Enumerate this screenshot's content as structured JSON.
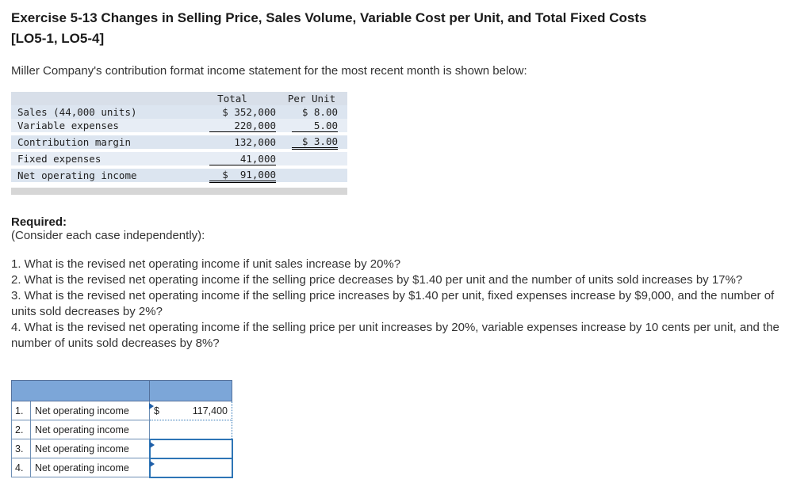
{
  "title": {
    "line1": "Exercise 5-13 Changes in Selling Price, Sales Volume, Variable Cost per Unit, and Total Fixed Costs",
    "line2": "[LO5-1, LO5-4]"
  },
  "intro": "Miller Company's contribution format income statement for the most recent month is shown below:",
  "income_statement": {
    "headers": {
      "total": "Total",
      "per_unit": "Per Unit"
    },
    "rows": [
      {
        "label": "Sales (44,000 units)",
        "total": "$ 352,000",
        "per_unit": "$ 8.00"
      },
      {
        "label": "Variable expenses",
        "total": "220,000",
        "per_unit": "5.00"
      },
      {
        "label": "Contribution margin",
        "total": "132,000",
        "per_unit": "$ 3.00"
      },
      {
        "label": "Fixed expenses",
        "total": "41,000",
        "per_unit": ""
      },
      {
        "label": "Net operating income",
        "total": "$  91,000",
        "per_unit": ""
      }
    ]
  },
  "required": {
    "heading": "Required:",
    "note": "(Consider each case independently):",
    "questions": [
      "1. What is the revised net operating income if unit sales increase by 20%?",
      "2. What is the revised net operating income if the selling price decreases by $1.40 per unit and the number of units sold increases by 17%?",
      "3. What is the revised net operating income if the selling price increases by $1.40 per unit, fixed expenses increase by $9,000, and the number of units sold decreases by 2%?",
      "4. What is the revised net operating income if the selling price per unit increases by 20%, variable expenses increase by 10 cents per unit, and the number of units sold decreases by 8%?"
    ]
  },
  "answers": {
    "rows": [
      {
        "num": "1.",
        "label": "Net operating income",
        "currency": "$",
        "value": "117,400"
      },
      {
        "num": "2.",
        "label": "Net operating income",
        "currency": "",
        "value": ""
      },
      {
        "num": "3.",
        "label": "Net operating income",
        "currency": "",
        "value": ""
      },
      {
        "num": "4.",
        "label": "Net operating income",
        "currency": "",
        "value": ""
      }
    ]
  },
  "colors": {
    "statement_stripe": "#dce5f0",
    "answer_header_blue": "#7ca6d8",
    "selection_blue": "#2e75b6",
    "grid_blue": "#6e8fb5"
  }
}
